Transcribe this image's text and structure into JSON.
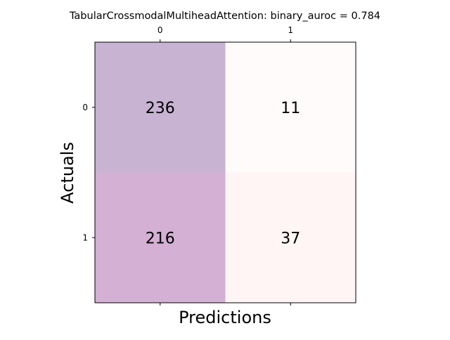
{
  "chart_data": {
    "type": "heatmap",
    "title": "TabularCrossmodalMultiheadAttention: binary_auroc = 0.784",
    "xlabel": "Predictions",
    "ylabel": "Actuals",
    "x_categories": [
      "0",
      "1"
    ],
    "y_categories": [
      "0",
      "1"
    ],
    "values": [
      [
        236,
        11
      ],
      [
        216,
        37
      ]
    ],
    "cell_colors": [
      [
        "#c8b3d3",
        "#fffbfb"
      ],
      [
        "#d3b0d4",
        "#fff5f5"
      ]
    ],
    "x_ticks_position": "top",
    "grid": false
  }
}
